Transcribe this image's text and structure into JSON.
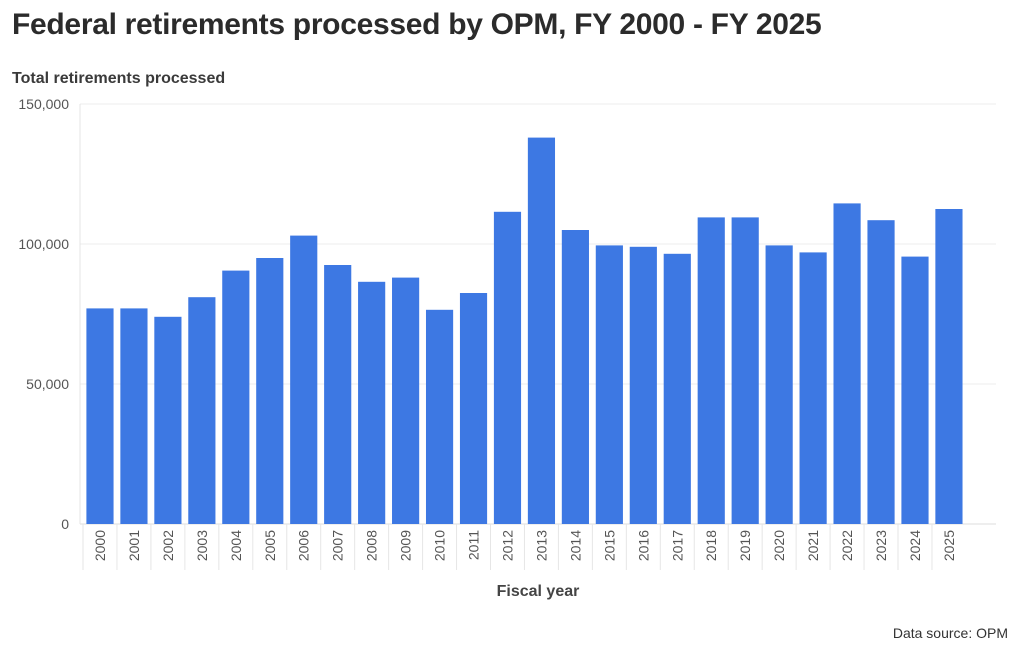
{
  "chart_data": {
    "type": "bar",
    "title": "Federal retirements processed by OPM, FY 2000 - FY 2025",
    "ylabel": "Total retirements processed",
    "xlabel": "Fiscal year",
    "source": "Data source: OPM",
    "ylim": [
      0,
      150000
    ],
    "yticks": [
      0,
      50000,
      100000,
      150000
    ],
    "ytick_labels": [
      "0",
      "50,000",
      "100,000",
      "150,000"
    ],
    "bar_color": "#3d78e3",
    "grid": true,
    "categories": [
      "2000",
      "2001",
      "2002",
      "2003",
      "2004",
      "2005",
      "2006",
      "2007",
      "2008",
      "2009",
      "2010",
      "2011",
      "2012",
      "2013",
      "2014",
      "2015",
      "2016",
      "2017",
      "2018",
      "2019",
      "2020",
      "2021",
      "2022",
      "2023",
      "2024",
      "2025"
    ],
    "values": [
      77000,
      77000,
      74000,
      81000,
      90500,
      95000,
      103000,
      92500,
      86500,
      88000,
      76500,
      82500,
      111500,
      138000,
      105000,
      99500,
      99000,
      96500,
      109500,
      109500,
      99500,
      97000,
      114500,
      108500,
      95500,
      112500
    ]
  }
}
